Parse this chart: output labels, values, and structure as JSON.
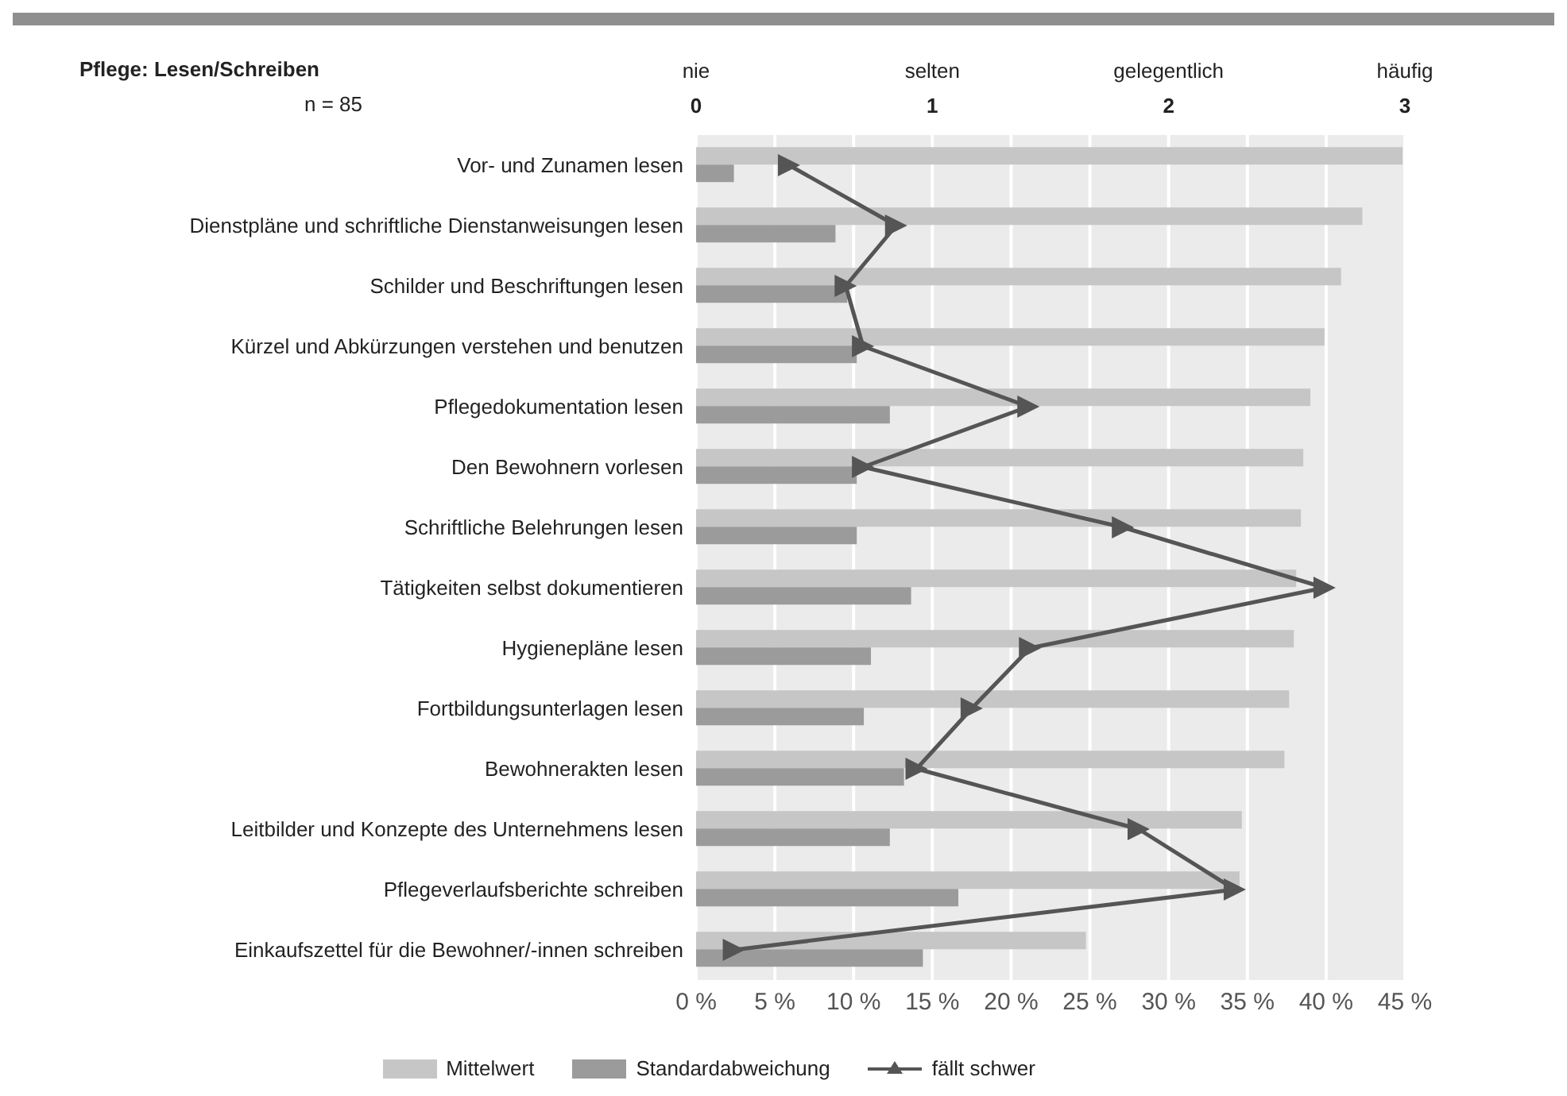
{
  "chart_data": {
    "type": "bar",
    "orientation": "horizontal",
    "title": "Pflege: Lesen/Schreiben",
    "subtitle": "n = 85",
    "categories": [
      "Vor- und Zunamen lesen",
      "Dienstpläne und schriftliche Dienstanweisungen lesen",
      "Schilder und Beschriftungen lesen",
      "Kürzel und Abkürzungen verstehen und benutzen",
      "Pflegedokumentation lesen",
      "Den Bewohnern vorlesen",
      "Schriftliche Belehrungen lesen",
      "Tätigkeiten selbst dokumentieren",
      "Hygienepläne lesen",
      "Fortbildungsunterlagen lesen",
      "Bewohnerakten lesen",
      "Leitbilder und Konzepte des Unternehmens lesen",
      "Pflegeverlaufsberichte schreiben",
      "Einkaufszettel für die Bewohner/-innen schreiben"
    ],
    "series": [
      {
        "name": "Mittelwert",
        "color": "#c5c6c5",
        "axis": "x2",
        "values": [
          2.99,
          2.82,
          2.73,
          2.66,
          2.6,
          2.57,
          2.56,
          2.54,
          2.53,
          2.51,
          2.49,
          2.31,
          2.3,
          1.65
        ]
      },
      {
        "name": "Standardabweichung",
        "color": "#9b9b9b",
        "axis": "x2",
        "values": [
          0.16,
          0.59,
          0.64,
          0.68,
          0.82,
          0.68,
          0.68,
          0.91,
          0.74,
          0.71,
          0.88,
          0.82,
          1.11,
          0.96
        ]
      },
      {
        "name": "fällt schwer",
        "type": "line",
        "color": "#555555",
        "marker": "triangle",
        "line_style": "solid",
        "values": [
          5.9,
          12.7,
          9.5,
          10.6,
          21.1,
          10.6,
          27.1,
          39.9,
          21.2,
          17.5,
          14.0,
          28.1,
          34.2,
          2.4
        ]
      }
    ],
    "xlim": [
      0,
      45
    ],
    "xticks": [
      {
        "value": 0,
        "label": "0 %"
      },
      {
        "value": 5,
        "label": "5 %"
      },
      {
        "value": 10,
        "label": "10 %"
      },
      {
        "value": 15,
        "label": "15 %"
      },
      {
        "value": 20,
        "label": "20 %"
      },
      {
        "value": 25,
        "label": "25 %"
      },
      {
        "value": 30,
        "label": "30 %"
      },
      {
        "value": 35,
        "label": "35 %"
      },
      {
        "value": 40,
        "label": "40 %"
      },
      {
        "value": 45,
        "label": "45 %"
      }
    ],
    "x2lim": [
      0,
      3
    ],
    "x2ticks": [
      0,
      1,
      2,
      3
    ],
    "annotations": [
      "nie",
      "selten",
      "gelegentlich",
      "häufig"
    ],
    "grid": "x",
    "legend": "bottom"
  }
}
